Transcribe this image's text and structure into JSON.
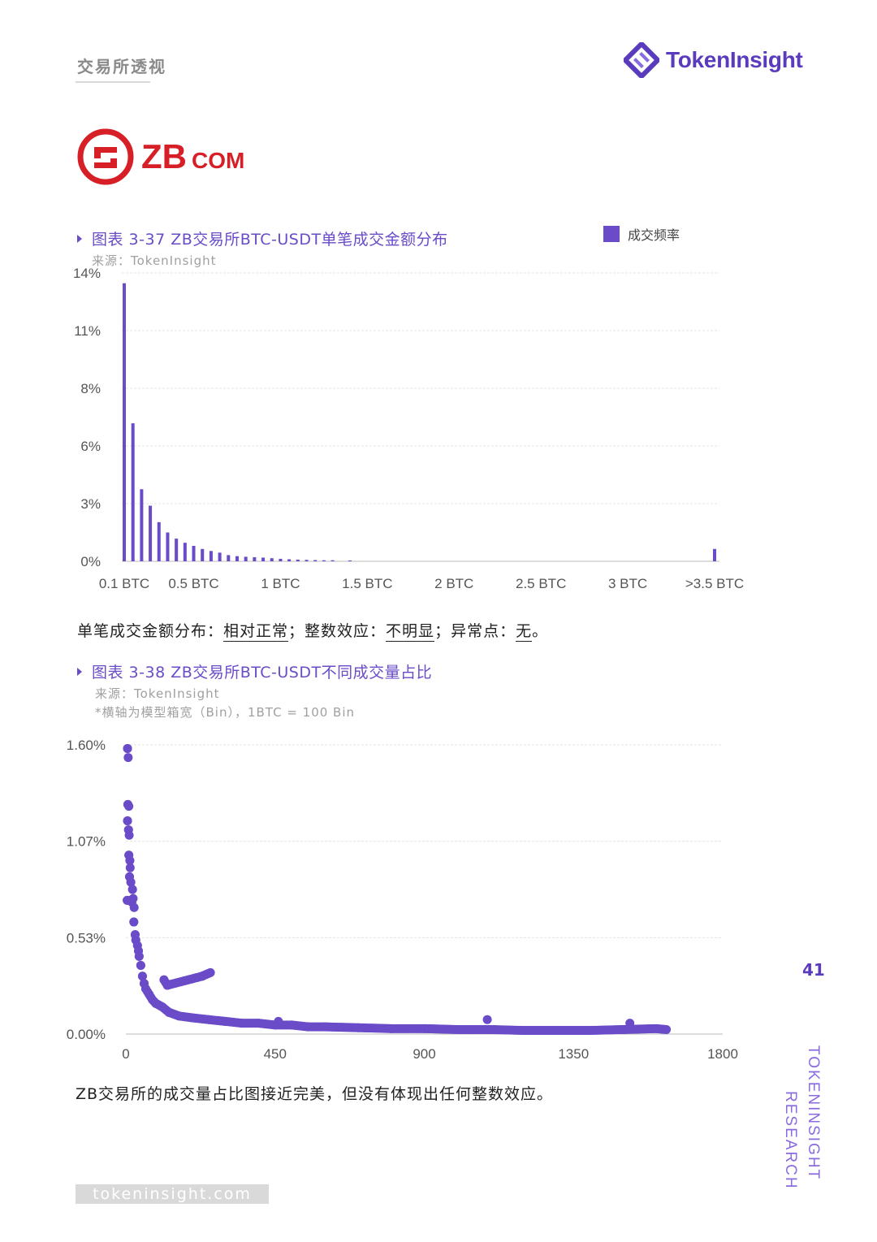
{
  "header": {
    "section_title": "交易所透视",
    "brand_name": "TokenInsight"
  },
  "exchange_logo": {
    "text": "ZB",
    "suffix": "COM"
  },
  "figure1": {
    "title": "图表 3-37 ZB交易所BTC-USDT单笔成交金额分布",
    "source": "来源：TokenInsight",
    "legend_label": "成交频率"
  },
  "summary1": {
    "p1": "单笔成交金额分布：",
    "v1": "相对正常",
    "p2": "；整数效应：",
    "v2": "不明显",
    "p3": "；异常点：",
    "v3": "无",
    "p4": "。"
  },
  "figure2": {
    "title": "图表 3-38 ZB交易所BTC-USDT不同成交量占比",
    "source": "来源：TokenInsight",
    "note": "*横轴为模型箱宽（Bin），1BTC = 100 Bin"
  },
  "summary2": "ZB交易所的成交量占比图接近完美，但没有体现出任何整数效应。",
  "page_number": "41",
  "side_brand": [
    "TOKENINSIGHT",
    "RESEARCH"
  ],
  "footer_url": "tokeninsight.com",
  "colors": {
    "accent": "#6a4bc8",
    "brand": "#5b3bbd"
  },
  "chart_data": [
    {
      "type": "bar",
      "title": "图表 3-37 ZB交易所BTC-USDT单笔成交金额分布",
      "xlabel": "",
      "ylabel": "",
      "y_ticks": [
        "0%",
        "3%",
        "6%",
        "8%",
        "11%",
        "14%"
      ],
      "y_unit": "%",
      "ylim": [
        0,
        14
      ],
      "x_tick_labels": [
        "0.1 BTC",
        "0.5 BTC",
        "1 BTC",
        "1.5 BTC",
        "2 BTC",
        "2.5 BTC",
        "3 BTC",
        ">3.5 BTC"
      ],
      "x_tick_positions": [
        0.1,
        0.5,
        1.0,
        1.5,
        2.0,
        2.5,
        3.0,
        3.5
      ],
      "series": [
        {
          "name": "成交频率",
          "x": [
            0.1,
            0.15,
            0.2,
            0.25,
            0.3,
            0.35,
            0.4,
            0.45,
            0.5,
            0.55,
            0.6,
            0.65,
            0.7,
            0.75,
            0.8,
            0.85,
            0.9,
            0.95,
            1.0,
            1.05,
            1.1,
            1.15,
            1.2,
            1.25,
            1.3,
            1.4,
            3.5
          ],
          "values": [
            13.5,
            6.7,
            3.5,
            2.7,
            1.9,
            1.4,
            1.1,
            0.9,
            0.75,
            0.6,
            0.5,
            0.42,
            0.3,
            0.25,
            0.22,
            0.2,
            0.18,
            0.15,
            0.12,
            0.1,
            0.08,
            0.07,
            0.06,
            0.05,
            0.05,
            0.04,
            0.6
          ]
        }
      ],
      "grid": true
    },
    {
      "type": "scatter",
      "title": "图表 3-38 ZB交易所BTC-USDT不同成交量占比",
      "xlabel": "",
      "ylabel": "",
      "y_ticks": [
        "0.00%",
        "0.53%",
        "1.07%",
        "1.60%"
      ],
      "ylim": [
        0,
        1.6
      ],
      "xlim": [
        0,
        1800
      ],
      "x_ticks": [
        0,
        450,
        900,
        1350,
        1800
      ],
      "x_tick_labels": [
        "0",
        "450",
        "900",
        "1350",
        "1800"
      ],
      "series": [
        {
          "name": "",
          "points": [
            [
              5,
              1.58
            ],
            [
              7,
              1.53
            ],
            [
              6,
              1.27
            ],
            [
              9,
              1.26
            ],
            [
              5,
              1.18
            ],
            [
              8,
              1.13
            ],
            [
              10,
              1.1
            ],
            [
              9,
              0.99
            ],
            [
              12,
              0.96
            ],
            [
              13,
              0.92
            ],
            [
              11,
              0.87
            ],
            [
              15,
              0.84
            ],
            [
              20,
              0.8
            ],
            [
              22,
              0.75
            ],
            [
              4,
              0.74
            ],
            [
              14,
              0.74
            ],
            [
              18,
              0.73
            ],
            [
              25,
              0.7
            ],
            [
              24,
              0.62
            ],
            [
              28,
              0.55
            ],
            [
              30,
              0.52
            ],
            [
              35,
              0.49
            ],
            [
              38,
              0.46
            ],
            [
              40,
              0.43
            ],
            [
              45,
              0.38
            ],
            [
              50,
              0.32
            ],
            [
              55,
              0.28
            ],
            [
              60,
              0.25
            ],
            [
              70,
              0.22
            ],
            [
              80,
              0.19
            ],
            [
              90,
              0.17
            ],
            [
              110,
              0.15
            ],
            [
              130,
              0.12
            ],
            [
              160,
              0.1
            ],
            [
              200,
              0.09
            ],
            [
              250,
              0.08
            ],
            [
              300,
              0.07
            ],
            [
              350,
              0.06
            ],
            [
              400,
              0.06
            ],
            [
              450,
              0.05
            ],
            [
              500,
              0.05
            ],
            [
              550,
              0.04
            ],
            [
              600,
              0.04
            ],
            [
              700,
              0.035
            ],
            [
              800,
              0.03
            ],
            [
              900,
              0.03
            ],
            [
              1000,
              0.025
            ],
            [
              1100,
              0.025
            ],
            [
              1200,
              0.02
            ],
            [
              1300,
              0.02
            ],
            [
              1400,
              0.02
            ],
            [
              1500,
              0.025
            ],
            [
              1600,
              0.03
            ],
            [
              1630,
              0.025
            ],
            [
              115,
              0.3
            ],
            [
              125,
              0.27
            ],
            [
              230,
              0.32
            ],
            [
              255,
              0.34
            ],
            [
              1090,
              0.08
            ],
            [
              1520,
              0.06
            ],
            [
              460,
              0.07
            ]
          ]
        }
      ],
      "grid": true
    }
  ]
}
